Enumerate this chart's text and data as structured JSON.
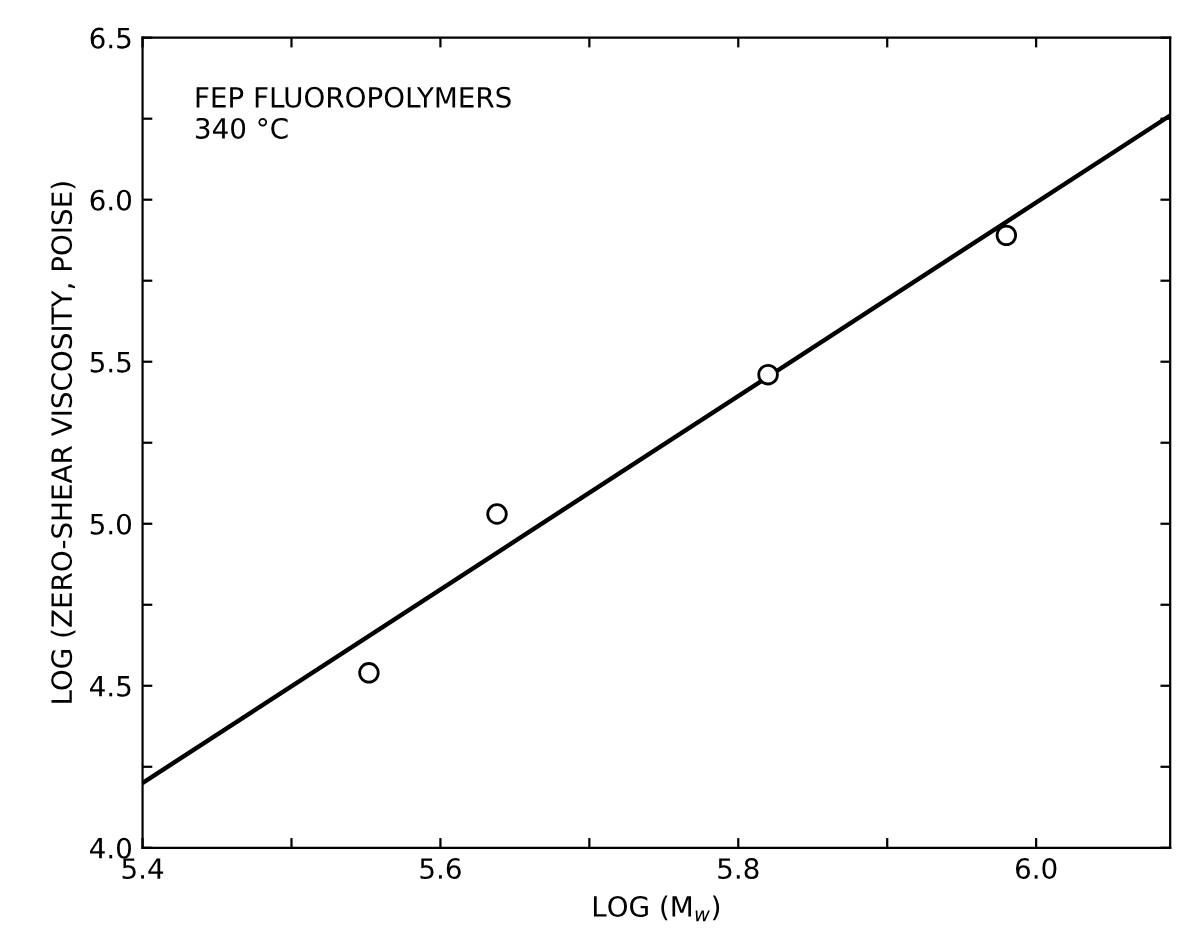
{
  "chart_data": {
    "type": "scatter",
    "xlabel": "LOG (M$_{w}$)",
    "ylabel": "LOG (ZERO-SHEAR VISCOSITY, POISE)",
    "annotations": [
      "FEP FLUOROPOLYMERS\n340 °C"
    ],
    "xlim": [
      5.4,
      6.09
    ],
    "ylim": [
      4.0,
      6.5
    ],
    "xticks": [
      5.4,
      {
        "value": 5.5,
        "label": null
      },
      5.6,
      {
        "value": 5.7,
        "label": null
      },
      5.8,
      {
        "value": 5.9,
        "label": null
      },
      {
        "value": 6,
        "label": "6.0"
      }
    ],
    "yticks": [
      {
        "value": 4,
        "label": "4.0"
      },
      {
        "value": 4.25,
        "label": null
      },
      4.5,
      {
        "value": 4.75,
        "label": null
      },
      {
        "value": 5,
        "label": "5.0"
      },
      {
        "value": 5.25,
        "label": null
      },
      5.5,
      {
        "value": 5.75,
        "label": null
      },
      {
        "value": 6,
        "label": "6.0"
      },
      {
        "value": 6.25,
        "label": null
      },
      6.5
    ],
    "grid": false,
    "legend": false,
    "series": [
      {
        "marker": "circle",
        "color": "#000000",
        "x": [
          5.552,
          5.638,
          5.82,
          5.98
        ],
        "values": [
          4.54,
          5.03,
          5.46,
          5.89
        ]
      },
      {
        "type": "line",
        "color": "#000000",
        "x": [
          5.4,
          6.09
        ],
        "values": [
          4.2,
          6.26
        ]
      }
    ]
  }
}
